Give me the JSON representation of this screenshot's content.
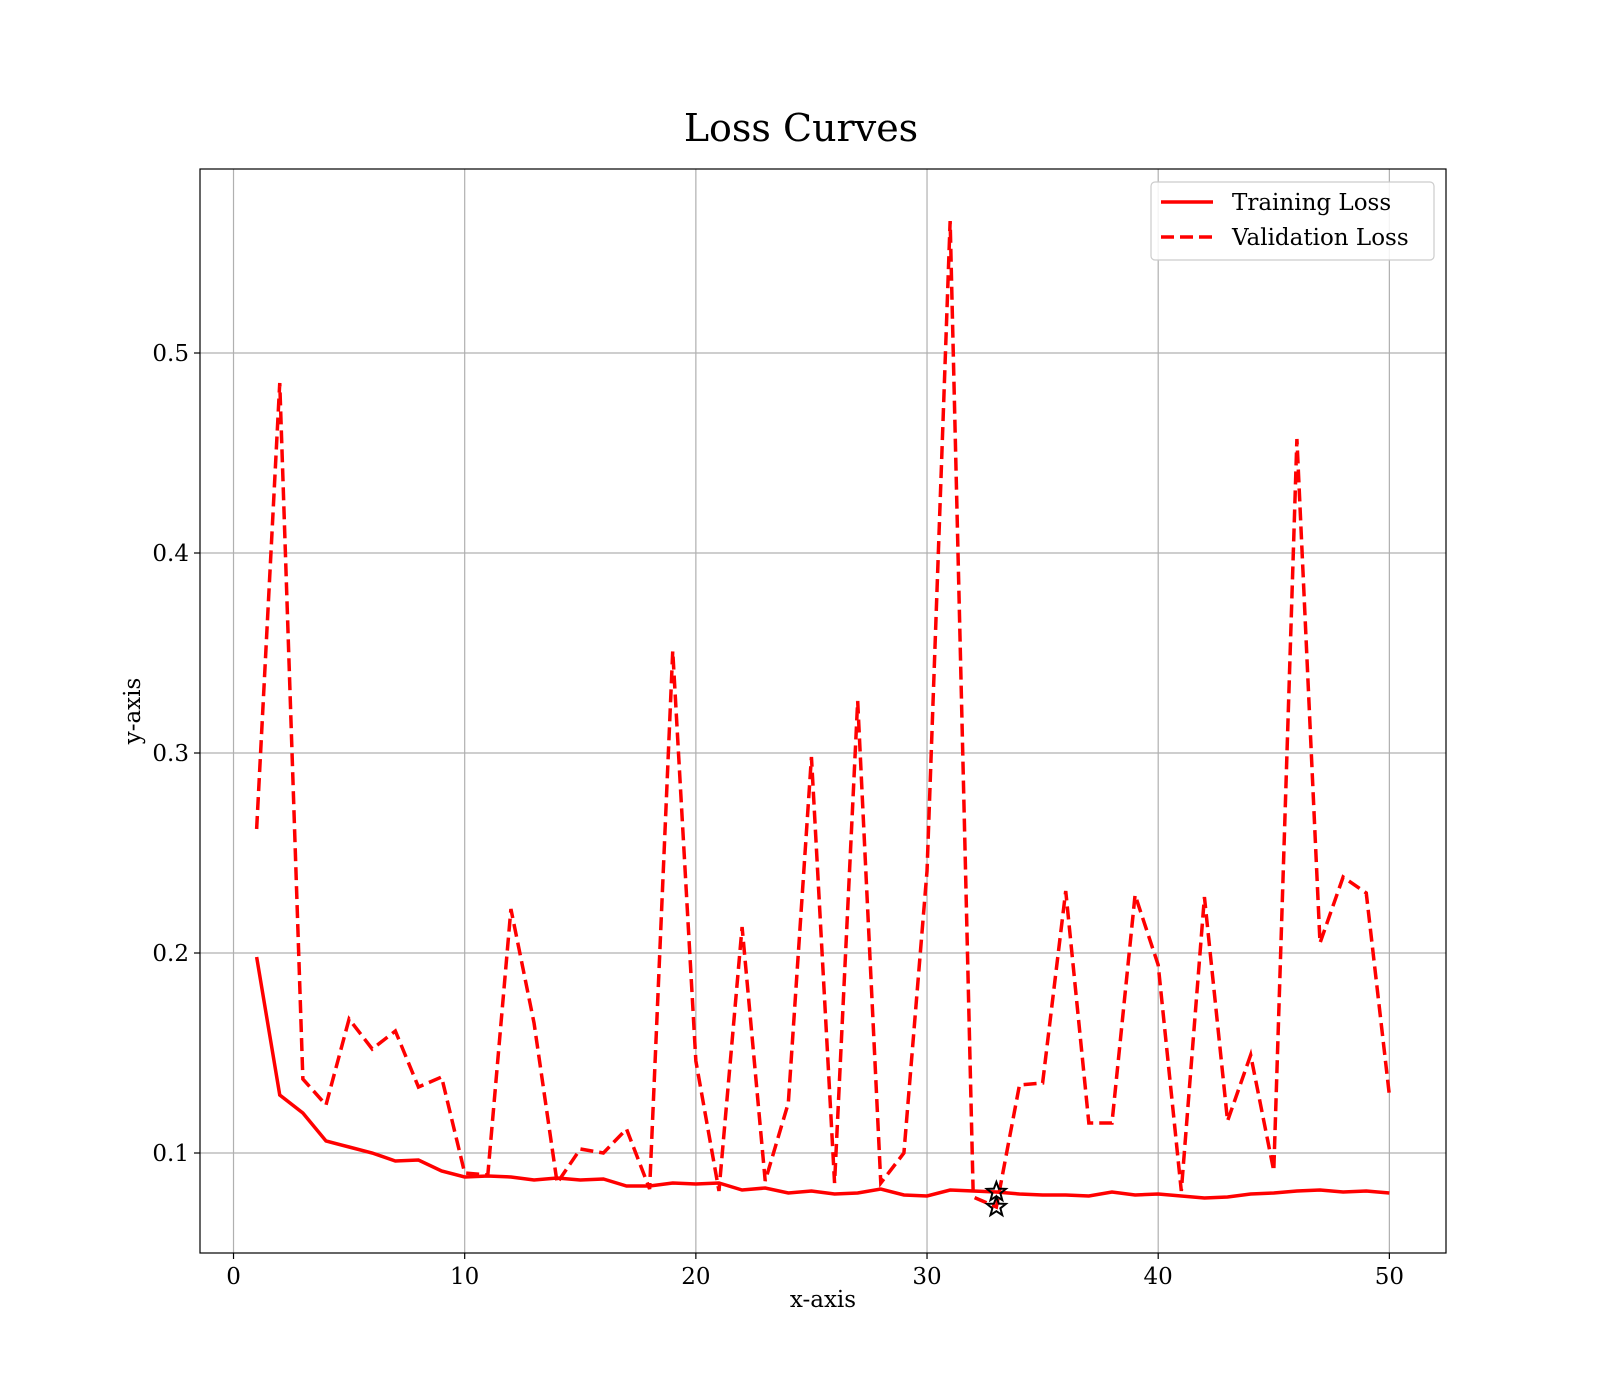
{
  "chart_data": {
    "type": "line",
    "title": "Loss Curves",
    "xlabel": "x-axis",
    "ylabel": "y-axis",
    "xlim": [
      -1.45,
      52.45
    ],
    "ylim": [
      0.05,
      0.592
    ],
    "xticks": [
      0,
      10,
      20,
      30,
      40,
      50
    ],
    "xtick_labels": [
      "0",
      "10",
      "20",
      "30",
      "40",
      "50"
    ],
    "yticks": [
      0.1,
      0.2,
      0.3,
      0.4,
      0.5
    ],
    "ytick_labels": [
      "0.1",
      "0.2",
      "0.3",
      "0.4",
      "0.5"
    ],
    "grid": true,
    "legend_position": "top-right",
    "x": [
      1,
      2,
      3,
      4,
      5,
      6,
      7,
      8,
      9,
      10,
      11,
      12,
      13,
      14,
      15,
      16,
      17,
      18,
      19,
      20,
      21,
      22,
      23,
      24,
      25,
      26,
      27,
      28,
      29,
      30,
      31,
      32,
      33,
      34,
      35,
      36,
      37,
      38,
      39,
      40,
      41,
      42,
      43,
      44,
      45,
      46,
      47,
      48,
      49,
      50
    ],
    "series": [
      {
        "name": "Training Loss",
        "color": "#ff0000",
        "style": "solid",
        "values": [
          0.198,
          0.129,
          0.12,
          0.106,
          0.103,
          0.1,
          0.096,
          0.0965,
          0.091,
          0.088,
          0.0885,
          0.088,
          0.0865,
          0.0875,
          0.0865,
          0.087,
          0.0835,
          0.0835,
          0.085,
          0.0845,
          0.085,
          0.0815,
          0.0825,
          0.08,
          0.081,
          0.0795,
          0.08,
          0.082,
          0.079,
          0.0785,
          0.0815,
          0.081,
          0.0805,
          0.0795,
          0.079,
          0.079,
          0.0785,
          0.0805,
          0.079,
          0.0795,
          0.0785,
          0.0775,
          0.078,
          0.0795,
          0.08,
          0.081,
          0.0815,
          0.0805,
          0.081,
          0.08
        ]
      },
      {
        "name": "Validation Loss",
        "color": "#ff0000",
        "style": "dashed",
        "values": [
          0.262,
          0.485,
          0.137,
          0.124,
          0.167,
          0.152,
          0.161,
          0.133,
          0.138,
          0.09,
          0.089,
          0.222,
          0.165,
          0.085,
          0.102,
          0.1,
          0.112,
          0.082,
          0.351,
          0.146,
          0.081,
          0.213,
          0.086,
          0.125,
          0.298,
          0.085,
          0.326,
          0.085,
          0.1,
          0.241,
          0.566,
          0.078,
          0.073,
          0.134,
          0.135,
          0.231,
          0.115,
          0.115,
          0.229,
          0.194,
          0.081,
          0.228,
          0.116,
          0.149,
          0.091,
          0.457,
          0.205,
          0.238,
          0.23,
          0.129
        ]
      }
    ],
    "markers": [
      {
        "label": "star",
        "x": 33,
        "y": 0.0805,
        "color": "#000000"
      },
      {
        "label": "star",
        "x": 33,
        "y": 0.073,
        "color": "#000000"
      }
    ]
  }
}
